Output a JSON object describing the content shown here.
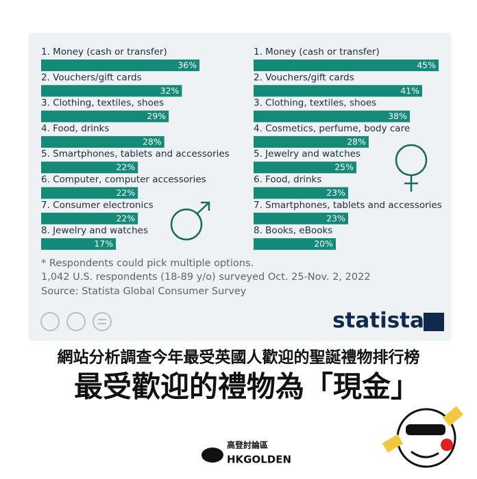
{
  "chart_data": [
    {
      "type": "bar",
      "color": "#168a78",
      "categories": [
        "1. Money (cash or transfer)",
        "2. Vouchers/gift cards",
        "3. Clothing, textiles, shoes",
        "4. Food, drinks",
        "5. Smartphones, tablets and accessories",
        "6. Computer, computer accessories",
        "7. Consumer electronics",
        "8. Jewelry and watches"
      ],
      "values": [
        36,
        32,
        29,
        28,
        22,
        22,
        22,
        17
      ],
      "value_labels": [
        "36%",
        "32%",
        "29%",
        "28%",
        "22%",
        "22%",
        "22%",
        "17%"
      ]
    },
    {
      "type": "bar",
      "color": "#168a78",
      "categories": [
        "1. Money (cash or transfer)",
        "2. Vouchers/gift cards",
        "3. Clothing, textiles, shoes",
        "4. Cosmetics, perfume, body care",
        "5. Jewelry and watches",
        "6. Food, drinks",
        "7. Smartphones, tablets and accessories",
        "8. Books, eBooks"
      ],
      "values": [
        45,
        41,
        38,
        28,
        25,
        23,
        23,
        20
      ],
      "value_labels": [
        "45%",
        "41%",
        "38%",
        "28%",
        "25%",
        "23%",
        "23%",
        "20%"
      ]
    }
  ],
  "notes": [
    "* Respondents could pick multiple options.",
    "1,042 U.S. respondents (18-89 y/o) surveyed Oct. 25-Nov. 2, 2022",
    "Source: Statista Global Consumer Survey"
  ],
  "logo": "statista",
  "headline": "網站分析調查今年最受英國人歡迎的聖誕禮物排行榜",
  "subheadline": "最受歡迎的禮物為「現金」",
  "brand": {
    "chinese": "高登討論區",
    "latin": "HKGOLDEN"
  }
}
